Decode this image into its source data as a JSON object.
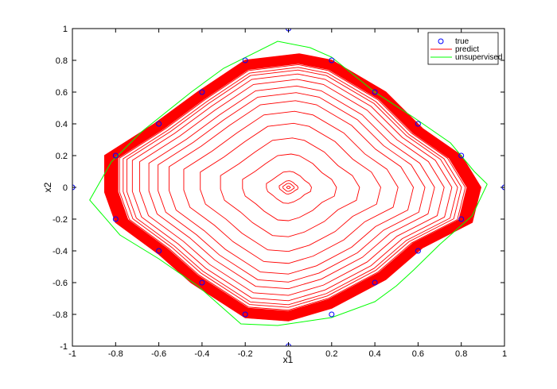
{
  "chart_data": {
    "type": "line",
    "xlabel": "x1",
    "ylabel": "x2",
    "xlim": [
      -1,
      1
    ],
    "ylim": [
      -1,
      1
    ],
    "xticks": [
      "-1",
      "-0.8",
      "-0.6",
      "-0.4",
      "-0.2",
      "0",
      "0.2",
      "0.4",
      "0.6",
      "0.8",
      "1"
    ],
    "yticks": [
      "-1",
      "-0.8",
      "-0.6",
      "-0.4",
      "-0.2",
      "0",
      "0.2",
      "0.4",
      "0.6",
      "0.8",
      "1"
    ],
    "grid": false,
    "legend_position": "top-right",
    "series": [
      {
        "name": "true",
        "kind": "scatter",
        "marker": "circle",
        "color": "#0000ff",
        "points": [
          [
            1,
            0
          ],
          [
            0.8,
            0.2
          ],
          [
            0.6,
            0.4
          ],
          [
            0.4,
            0.6
          ],
          [
            0.2,
            0.8
          ],
          [
            0,
            1
          ],
          [
            -0.2,
            0.8
          ],
          [
            -0.4,
            0.6
          ],
          [
            -0.6,
            0.4
          ],
          [
            -0.8,
            0.2
          ],
          [
            -1,
            0
          ],
          [
            -0.8,
            -0.2
          ],
          [
            -0.6,
            -0.4
          ],
          [
            -0.4,
            -0.6
          ],
          [
            -0.2,
            -0.8
          ],
          [
            0,
            -1
          ],
          [
            0.2,
            -0.8
          ],
          [
            0.4,
            -0.6
          ],
          [
            0.6,
            -0.4
          ],
          [
            0.8,
            -0.2
          ]
        ]
      },
      {
        "name": "predict",
        "kind": "line",
        "color": "#ff0000",
        "shape": [
          [
            0.89,
            0.0
          ],
          [
            0.8,
            0.2
          ],
          [
            0.62,
            0.37
          ],
          [
            0.45,
            0.6
          ],
          [
            0.2,
            0.8
          ],
          [
            0.05,
            0.84
          ],
          [
            -0.2,
            0.8
          ],
          [
            -0.42,
            0.6
          ],
          [
            -0.62,
            0.4
          ],
          [
            -0.85,
            0.2
          ],
          [
            -0.85,
            -0.03
          ],
          [
            -0.8,
            -0.22
          ],
          [
            -0.6,
            -0.42
          ],
          [
            -0.45,
            -0.6
          ],
          [
            -0.2,
            -0.82
          ],
          [
            0.0,
            -0.84
          ],
          [
            0.2,
            -0.76
          ],
          [
            0.45,
            -0.58
          ],
          [
            0.62,
            -0.38
          ],
          [
            0.85,
            -0.22
          ]
        ],
        "ring_scales": [
          0.01,
          0.03,
          0.05,
          0.12,
          0.25,
          0.37,
          0.48,
          0.57,
          0.65,
          0.71,
          0.76,
          0.81,
          0.85,
          0.88,
          0.9,
          0.92,
          0.935,
          0.95,
          0.96,
          0.97,
          0.98,
          0.985,
          0.99,
          0.995,
          1.0
        ],
        "outer_band": {
          "from": 0.93,
          "to": 1.0,
          "rings": 18
        }
      },
      {
        "name": "unsupervised",
        "kind": "line",
        "color": "#00ff00",
        "points": [
          [
            0.92,
            0.02
          ],
          [
            0.85,
            -0.18
          ],
          [
            0.7,
            -0.36
          ],
          [
            0.58,
            -0.52
          ],
          [
            0.5,
            -0.62
          ],
          [
            0.4,
            -0.72
          ],
          [
            0.2,
            -0.82
          ],
          [
            -0.05,
            -0.87
          ],
          [
            -0.22,
            -0.86
          ],
          [
            -0.42,
            -0.62
          ],
          [
            -0.6,
            -0.45
          ],
          [
            -0.78,
            -0.3
          ],
          [
            -0.92,
            -0.08
          ],
          [
            -0.82,
            0.16
          ],
          [
            -0.68,
            0.35
          ],
          [
            -0.45,
            0.6
          ],
          [
            -0.3,
            0.75
          ],
          [
            -0.05,
            0.92
          ],
          [
            0.1,
            0.88
          ],
          [
            0.2,
            0.82
          ],
          [
            0.4,
            0.6
          ],
          [
            0.58,
            0.44
          ],
          [
            0.75,
            0.28
          ],
          [
            0.86,
            0.1
          ],
          [
            0.92,
            0.02
          ]
        ]
      }
    ]
  }
}
